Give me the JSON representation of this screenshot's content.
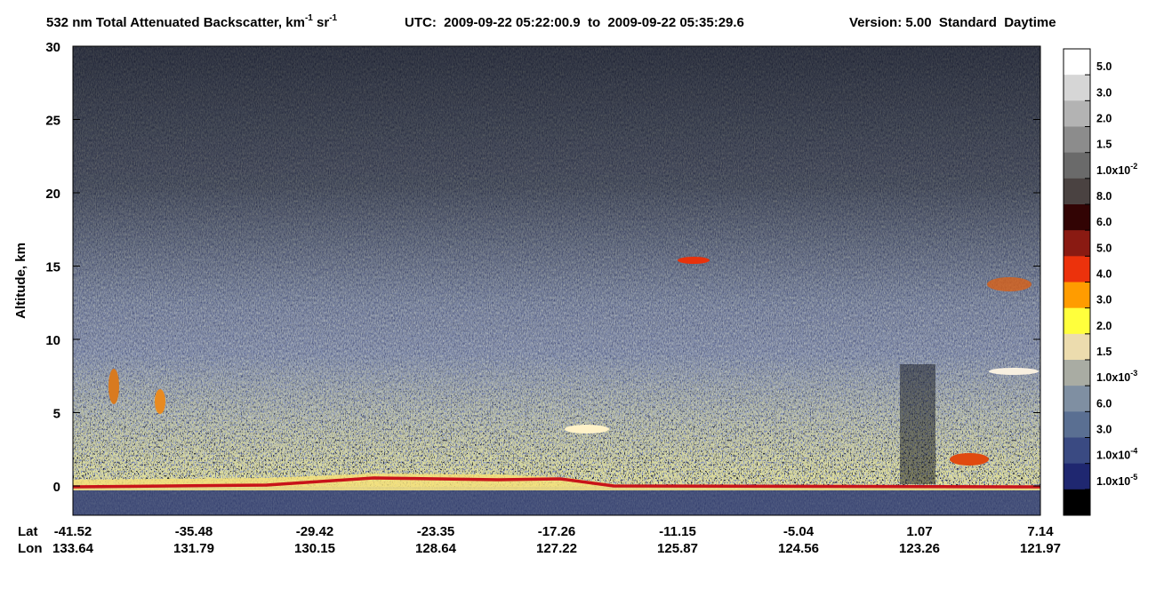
{
  "chart_data": {
    "type": "heatmap",
    "title": {
      "main": "532 nm Total Attenuated Backscatter, km",
      "sup1": "-1",
      "unit2": " sr",
      "sup2": "-1",
      "time": "UTC:  2009-09-22 05:22:00.9  to  2009-09-22 05:35:29.6",
      "version": "Version: 5.00  Standard  Daytime"
    },
    "y_label": "Altitude, km",
    "ylim": [
      -2,
      30
    ],
    "yticks": [
      0,
      5,
      10,
      15,
      20,
      25,
      30
    ],
    "x_rows": [
      {
        "label": "Lat",
        "values": [
          -41.52,
          -35.48,
          -29.42,
          -23.35,
          -17.26,
          -11.15,
          -5.04,
          1.07,
          7.14
        ]
      },
      {
        "label": "Lon",
        "values": [
          133.64,
          131.79,
          130.15,
          128.64,
          127.22,
          125.87,
          124.56,
          123.26,
          121.97
        ]
      }
    ],
    "colorbar": {
      "colors": [
        "#ffffff",
        "#d6d6d6",
        "#b3b3b3",
        "#8c8c8c",
        "#6a6a6a",
        "#4a4241",
        "#320404",
        "#8a1a12",
        "#ec320c",
        "#ff9c00",
        "#ffff3c",
        "#ecdcae",
        "#a9aca3",
        "#7f8fa2",
        "#5a6f92",
        "#3a4a82",
        "#1f2770",
        "#000000"
      ],
      "labels": [
        {
          "text": "5.0"
        },
        {
          "text": "3.0"
        },
        {
          "text": "2.0"
        },
        {
          "text": "1.5"
        },
        {
          "text": "1.0x10",
          "sup": "-2"
        },
        {
          "text": "8.0"
        },
        {
          "text": "6.0"
        },
        {
          "text": "5.0"
        },
        {
          "text": "4.0"
        },
        {
          "text": "3.0"
        },
        {
          "text": "2.0"
        },
        {
          "text": "1.5"
        },
        {
          "text": "1.0x10",
          "sup": "-3"
        },
        {
          "text": "6.0"
        },
        {
          "text": "3.0"
        },
        {
          "text": "1.0x10",
          "sup": "-4"
        },
        {
          "text": "1.0x10",
          "sup": "-5"
        }
      ]
    }
  }
}
